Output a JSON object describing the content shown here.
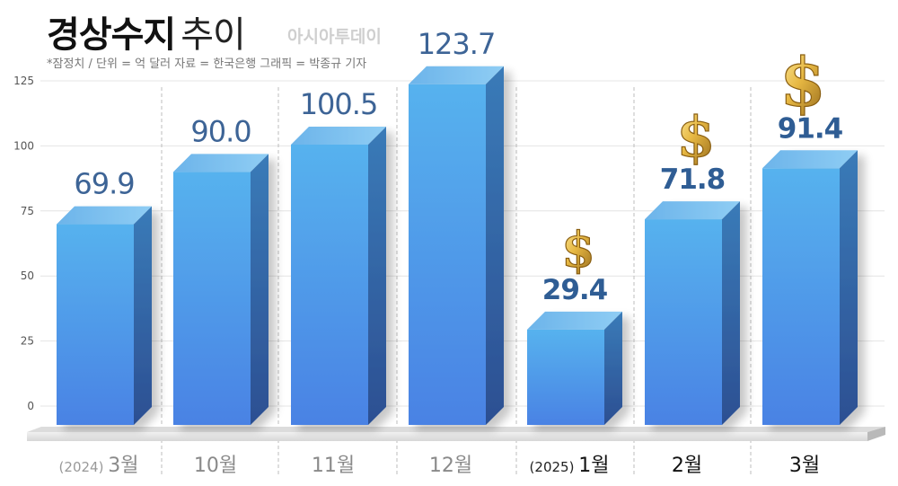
{
  "header": {
    "title_bold": "경상수지",
    "title_rest": "추이",
    "watermark": "아시아투데이",
    "note": "*잠정치 / 단위 = 억 달러  자료 = 한국은행  그래픽 = 박종규 기자"
  },
  "chart_data": {
    "type": "bar",
    "categories": [
      "3월",
      "10월",
      "11월",
      "12월",
      "1월",
      "2월",
      "3월"
    ],
    "category_prefixes": [
      "(2024)",
      "",
      "",
      "",
      "(2025)",
      "",
      ""
    ],
    "values": [
      69.9,
      90.0,
      100.5,
      123.7,
      29.4,
      71.8,
      91.4
    ],
    "value_labels": [
      "69.9",
      "90.0",
      "100.5",
      "123.7",
      "29.4",
      "71.8",
      "91.4"
    ],
    "yticks": [
      "0",
      "25",
      "50",
      "75",
      "100",
      "125"
    ],
    "ylim": [
      0,
      125
    ],
    "grid": true,
    "highlighted_categories": [
      4,
      5,
      6
    ],
    "dollar_icon_on": [
      4,
      5,
      6
    ],
    "colors": {
      "bar_front": "#4f8ee6",
      "bar_top": "#6fb8ee",
      "bar_side": "#2f5c9e",
      "label_regular": "#3d6496",
      "label_highlight": "#2f5d94",
      "gold": "#d9a93a"
    }
  }
}
